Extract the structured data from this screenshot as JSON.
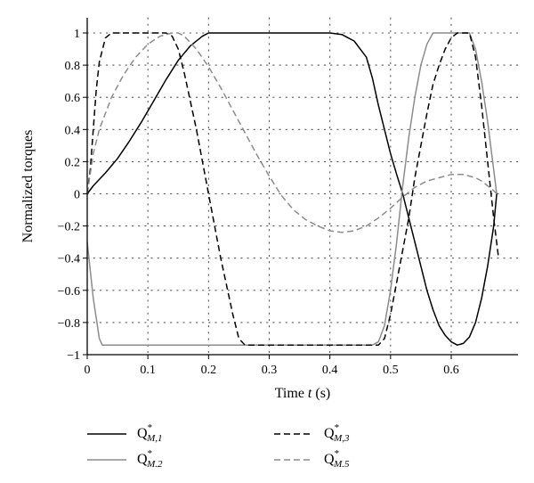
{
  "chart_data": {
    "type": "line",
    "xlabel": "Time",
    "xlabel_var": "t",
    "xlabel_unit": "(s)",
    "ylabel": "Normalized torques",
    "xlim": [
      0,
      0.68
    ],
    "ylim": [
      -1,
      1.1
    ],
    "xticks": [
      0,
      0.1,
      0.2,
      0.3,
      0.4,
      0.5,
      0.6
    ],
    "xtick_labels": [
      "0",
      "0.1",
      "0.2",
      "0.3",
      "0.4",
      "0.5",
      "0.6"
    ],
    "yticks": [
      -1,
      -0.8,
      -0.6,
      -0.4,
      -0.2,
      0,
      0.2,
      0.4,
      0.6,
      0.8,
      1
    ],
    "ytick_labels": [
      "−1",
      "−0.8",
      "−0.6",
      "−0.4",
      "−0.2",
      "0",
      "0.2",
      "0.4",
      "0.6",
      "0.8",
      "1"
    ],
    "grid": "dotted",
    "legend_position": "bottom",
    "series": [
      {
        "name": "Q",
        "name_sup": "*",
        "name_sub": "M,1",
        "color": "#000000",
        "dash": "solid",
        "x": [
          0,
          0.01,
          0.03,
          0.05,
          0.07,
          0.09,
          0.11,
          0.13,
          0.15,
          0.17,
          0.19,
          0.2,
          0.25,
          0.3,
          0.35,
          0.4,
          0.42,
          0.44,
          0.46,
          0.47,
          0.48,
          0.49,
          0.5,
          0.51,
          0.52,
          0.53,
          0.54,
          0.55,
          0.56,
          0.57,
          0.58,
          0.59,
          0.6,
          0.61,
          0.62,
          0.63,
          0.64,
          0.65,
          0.66,
          0.67,
          0.675
        ],
        "y": [
          0,
          0.05,
          0.13,
          0.22,
          0.33,
          0.45,
          0.58,
          0.71,
          0.83,
          0.92,
          0.98,
          1.0,
          1.0,
          1.0,
          1.0,
          1.0,
          0.99,
          0.95,
          0.85,
          0.72,
          0.55,
          0.4,
          0.25,
          0.12,
          0.0,
          -0.15,
          -0.3,
          -0.45,
          -0.6,
          -0.72,
          -0.82,
          -0.88,
          -0.92,
          -0.94,
          -0.93,
          -0.89,
          -0.8,
          -0.65,
          -0.45,
          -0.2,
          0.0
        ]
      },
      {
        "name": "Q",
        "name_sup": "*",
        "name_sub": "M.2",
        "color": "#8c8c8c",
        "dash": "solid",
        "x": [
          0,
          0.01,
          0.02,
          0.025,
          0.1,
          0.2,
          0.3,
          0.4,
          0.47,
          0.48,
          0.49,
          0.5,
          0.51,
          0.52,
          0.53,
          0.54,
          0.55,
          0.56,
          0.57,
          0.58,
          0.6,
          0.62,
          0.63,
          0.64,
          0.65,
          0.66,
          0.67,
          0.675
        ],
        "y": [
          -0.3,
          -0.65,
          -0.9,
          -0.94,
          -0.94,
          -0.94,
          -0.94,
          -0.94,
          -0.94,
          -0.92,
          -0.82,
          -0.6,
          -0.3,
          0.05,
          0.35,
          0.6,
          0.8,
          0.93,
          1.0,
          1.0,
          1.0,
          1.0,
          1.0,
          0.9,
          0.7,
          0.45,
          0.15,
          0.0
        ]
      },
      {
        "name": "Q",
        "name_sup": "*",
        "name_sub": "M,3",
        "color": "#000000",
        "dash": "dashed",
        "x": [
          0,
          0.005,
          0.01,
          0.015,
          0.02,
          0.03,
          0.04,
          0.05,
          0.1,
          0.13,
          0.14,
          0.15,
          0.16,
          0.18,
          0.2,
          0.22,
          0.24,
          0.25,
          0.26,
          0.3,
          0.4,
          0.48,
          0.49,
          0.5,
          0.51,
          0.52,
          0.53,
          0.54,
          0.55,
          0.56,
          0.57,
          0.58,
          0.59,
          0.6,
          0.61,
          0.62,
          0.63,
          0.64,
          0.65,
          0.66,
          0.67,
          0.678
        ],
        "y": [
          0,
          0.15,
          0.4,
          0.65,
          0.82,
          0.97,
          1.0,
          1.0,
          1.0,
          1.0,
          0.98,
          0.9,
          0.75,
          0.4,
          0.0,
          -0.4,
          -0.75,
          -0.9,
          -0.94,
          -0.94,
          -0.94,
          -0.94,
          -0.9,
          -0.75,
          -0.55,
          -0.35,
          -0.15,
          0.1,
          0.3,
          0.5,
          0.68,
          0.8,
          0.9,
          0.97,
          1.0,
          1.0,
          1.0,
          0.85,
          0.55,
          0.2,
          -0.15,
          -0.4
        ]
      },
      {
        "name": "Q",
        "name_sup": "*",
        "name_sub": "M.5",
        "color": "#8c8c8c",
        "dash": "dashed",
        "x": [
          0,
          0.01,
          0.02,
          0.04,
          0.06,
          0.08,
          0.1,
          0.12,
          0.14,
          0.15,
          0.16,
          0.18,
          0.2,
          0.22,
          0.24,
          0.26,
          0.28,
          0.3,
          0.32,
          0.34,
          0.36,
          0.38,
          0.4,
          0.42,
          0.44,
          0.46,
          0.48,
          0.5,
          0.52,
          0.54,
          0.56,
          0.58,
          0.6,
          0.62,
          0.63,
          0.64,
          0.65,
          0.66,
          0.67,
          0.675
        ],
        "y": [
          0,
          0.25,
          0.4,
          0.6,
          0.74,
          0.85,
          0.93,
          0.98,
          1.0,
          1.0,
          0.98,
          0.9,
          0.79,
          0.66,
          0.52,
          0.38,
          0.24,
          0.11,
          -0.01,
          -0.1,
          -0.16,
          -0.2,
          -0.23,
          -0.24,
          -0.23,
          -0.2,
          -0.15,
          -0.09,
          -0.02,
          0.04,
          0.08,
          0.1,
          0.12,
          0.12,
          0.11,
          0.1,
          0.08,
          0.05,
          0.02,
          0.0
        ]
      }
    ]
  }
}
